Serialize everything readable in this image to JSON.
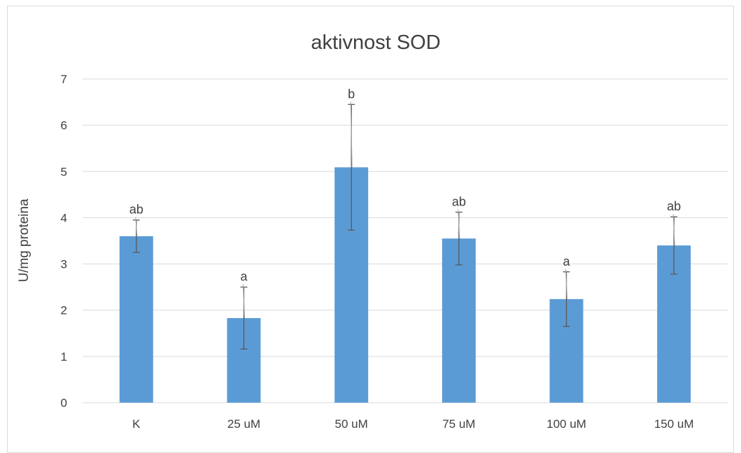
{
  "chart_data": {
    "type": "bar",
    "title": "aktivnost SOD",
    "xlabel": "",
    "ylabel": "U/mg proteina",
    "ylim": [
      0,
      7
    ],
    "yticks": [
      "0",
      "1",
      "2",
      "3",
      "4",
      "5",
      "6",
      "7"
    ],
    "grid": true,
    "categories": [
      "K",
      "25 uM",
      "50 uM",
      "75 uM",
      "100 uM",
      "150 uM"
    ],
    "values": [
      3.6,
      1.83,
      5.09,
      3.55,
      2.24,
      3.4
    ],
    "error": [
      0.35,
      0.67,
      1.36,
      0.57,
      0.59,
      0.62
    ],
    "labels": [
      "ab",
      "a",
      "b",
      "ab",
      "a",
      "ab"
    ],
    "colors": {
      "bar": "#5b9bd5",
      "grid": "#d9d9d9",
      "error": "#595959",
      "text": "#404040"
    }
  }
}
